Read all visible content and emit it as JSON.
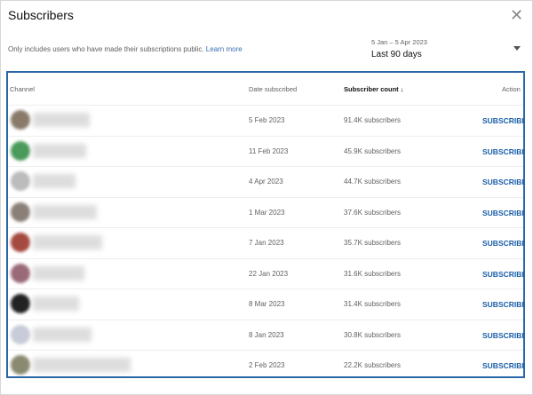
{
  "dialog": {
    "title": "Subscribers",
    "close_icon": "close-icon"
  },
  "note": {
    "text": "Only includes users who have made their subscriptions public.",
    "link": "Learn more"
  },
  "range": {
    "dates": "5 Jan – 5 Apr 2023",
    "label": "Last 90 days"
  },
  "table": {
    "headers": {
      "channel": "Channel",
      "date": "Date subscribed",
      "count": "Subscriber count ↓",
      "action": "Action"
    },
    "rows": [
      {
        "avatar": "#8a7a6a",
        "date": "5 Feb 2023",
        "count": "91.4K subscribers",
        "action": "SUBSCRIBE"
      },
      {
        "avatar": "#4a9a5a",
        "date": "11 Feb 2023",
        "count": "45.9K subscribers",
        "action": "SUBSCRIBE"
      },
      {
        "avatar": "#bcbcbc",
        "date": "4 Apr 2023",
        "count": "44.7K subscribers",
        "action": "SUBSCRIBE"
      },
      {
        "avatar": "#8a8078",
        "date": "1 Mar 2023",
        "count": "37.6K subscribers",
        "action": "SUBSCRIBE"
      },
      {
        "avatar": "#a54a40",
        "date": "7 Jan 2023",
        "count": "35.7K subscribers",
        "action": "SUBSCRIBE"
      },
      {
        "avatar": "#9a6a78",
        "date": "22 Jan 2023",
        "count": "31.6K subscribers",
        "action": "SUBSCRIBE"
      },
      {
        "avatar": "#222222",
        "date": "8 Mar 2023",
        "count": "31.4K subscribers",
        "action": "SUBSCRIBE"
      },
      {
        "avatar": "#c8ccd8",
        "date": "8 Jan 2023",
        "count": "30.8K subscribers",
        "action": "SUBSCRIBE"
      },
      {
        "avatar": "#8a8a70",
        "date": "2 Feb 2023",
        "count": "22.2K subscribers",
        "action": "SUBSCRIBE"
      }
    ]
  }
}
